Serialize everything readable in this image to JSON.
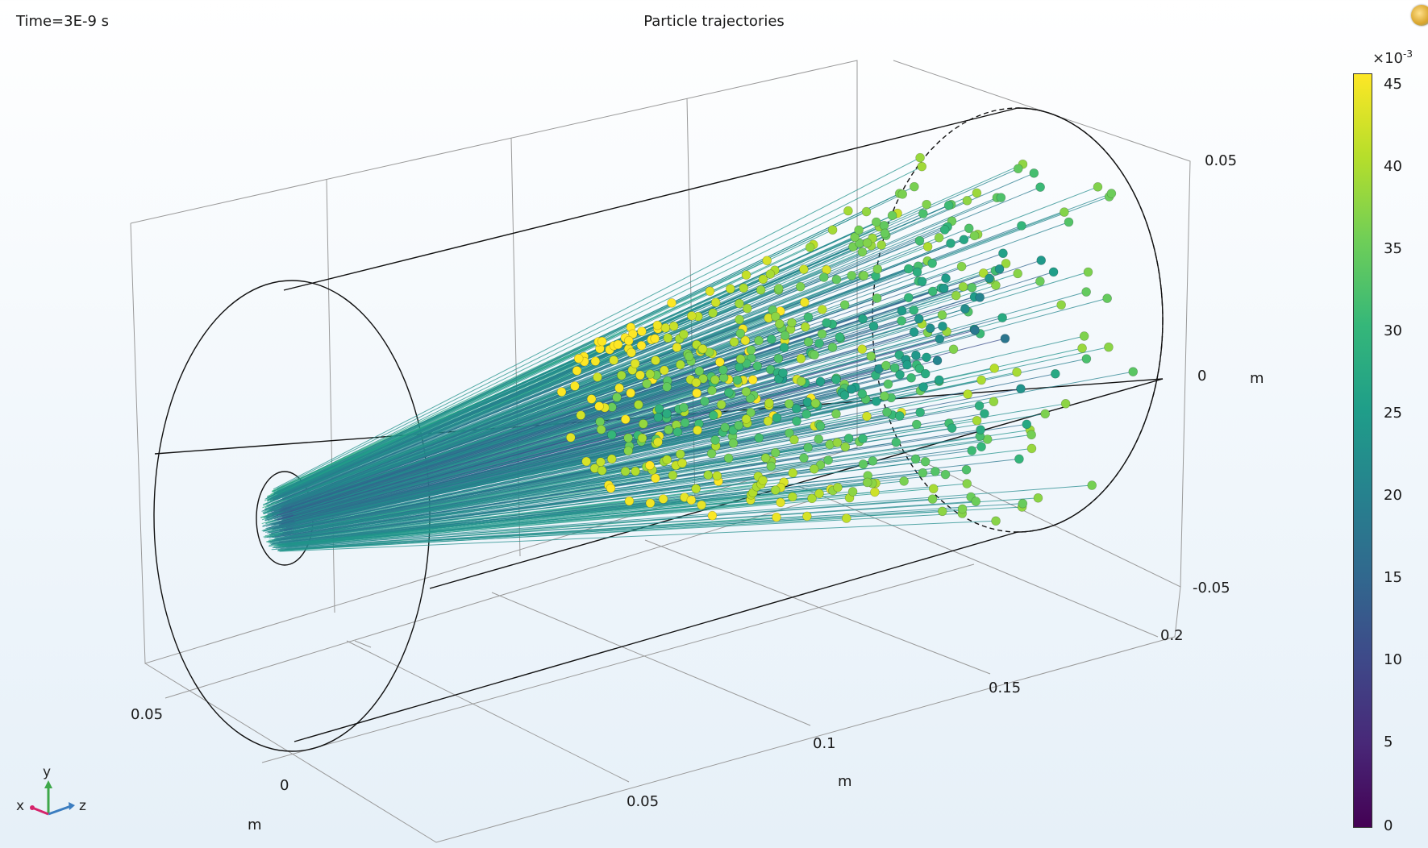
{
  "header": {
    "time_label": "Time=3E-9 s",
    "title": "Particle trajectories"
  },
  "axes": {
    "vertical": {
      "ticks": [
        "0.05",
        "0",
        "-0.05"
      ],
      "unit": "m"
    },
    "depth": {
      "ticks": [
        "0.2",
        "0.15",
        "0.1",
        "0.05"
      ],
      "unit": "m"
    },
    "front": {
      "ticks": [
        "0.05",
        "0"
      ],
      "unit": "m"
    }
  },
  "colorbar": {
    "exponent_base": "×10",
    "exponent": "-3",
    "ticks": [
      "45",
      "40",
      "35",
      "30",
      "25",
      "20",
      "15",
      "10",
      "5",
      "0"
    ],
    "min": 0,
    "max": 47,
    "colormap": [
      "#440154",
      "#482878",
      "#3e4989",
      "#31688e",
      "#26828e",
      "#1f9e89",
      "#35b779",
      "#6ece58",
      "#b5de2b",
      "#fde725"
    ]
  },
  "triad": {
    "x": "x",
    "y": "y",
    "z": "z",
    "x_color": "#d6246b",
    "y_color": "#3ea84a",
    "z_color": "#3b7dc0"
  },
  "icons": {
    "toolbar": "graphics-window-icon"
  }
}
